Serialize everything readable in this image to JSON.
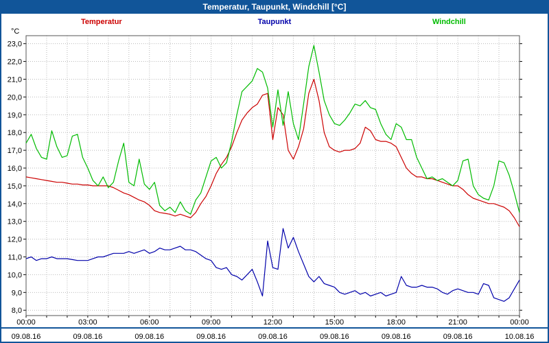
{
  "window": {
    "title": "Temperatur, Taupunkt, Windchill [°C]"
  },
  "colors": {
    "titlebar_bg": "#115599",
    "border": "#115599",
    "separator": "#115599",
    "temperatur": "#cc0000",
    "taupunkt": "#0000aa",
    "windchill": "#00bb00",
    "grid": "#b9b9b9",
    "plot_border": "#555555",
    "axis_text": "#000000"
  },
  "legend": {
    "items": [
      {
        "label": "Temperatur",
        "color_key": "temperatur"
      },
      {
        "label": "Taupunkt",
        "color_key": "taupunkt"
      },
      {
        "label": "Windchill",
        "color_key": "windchill"
      }
    ]
  },
  "chart_data": {
    "type": "line",
    "title": "Temperatur, Taupunkt, Windchill [°C]",
    "y_unit": "°C",
    "ylim": [
      7.7,
      23.45
    ],
    "x_range_hours": [
      0,
      24
    ],
    "sample_step_hours": 0.25,
    "grid": "dotted, every 1 °C horizontal and every 1 h vertical",
    "legend_position": "top",
    "y_ticks": [
      {
        "value": 23,
        "label": "23,0"
      },
      {
        "value": 22,
        "label": "22,0"
      },
      {
        "value": 21,
        "label": "21,0"
      },
      {
        "value": 20,
        "label": "20,0"
      },
      {
        "value": 19,
        "label": "19,0"
      },
      {
        "value": 18,
        "label": "18,0"
      },
      {
        "value": 17,
        "label": "17,0"
      },
      {
        "value": 16,
        "label": "16,0"
      },
      {
        "value": 15,
        "label": "15,0"
      },
      {
        "value": 14,
        "label": "14,0"
      },
      {
        "value": 13,
        "label": "13,0"
      },
      {
        "value": 12,
        "label": "12,0"
      },
      {
        "value": 11,
        "label": "11,0"
      },
      {
        "value": 10,
        "label": "10,0"
      },
      {
        "value": 9,
        "label": "9,0"
      },
      {
        "value": 8,
        "label": "8,0"
      }
    ],
    "x_ticks": [
      {
        "hour": 0,
        "time": "00:00",
        "date": "09.08.16"
      },
      {
        "hour": 3,
        "time": "03:00",
        "date": "09.08.16"
      },
      {
        "hour": 6,
        "time": "06:00",
        "date": "09.08.16"
      },
      {
        "hour": 9,
        "time": "09:00",
        "date": "09.08.16"
      },
      {
        "hour": 12,
        "time": "12:00",
        "date": "09.08.16"
      },
      {
        "hour": 15,
        "time": "15:00",
        "date": "09.08.16"
      },
      {
        "hour": 18,
        "time": "18:00",
        "date": "09.08.16"
      },
      {
        "hour": 21,
        "time": "21:00",
        "date": "09.08.16"
      },
      {
        "hour": 24,
        "time": "00:00",
        "date": "10.08.16"
      }
    ],
    "series": [
      {
        "name": "Temperatur",
        "color_key": "temperatur",
        "values": [
          15.5,
          15.45,
          15.4,
          15.35,
          15.3,
          15.25,
          15.2,
          15.2,
          15.15,
          15.1,
          15.1,
          15.05,
          15.05,
          15.0,
          15.0,
          15.0,
          15.0,
          14.9,
          14.75,
          14.6,
          14.5,
          14.35,
          14.2,
          14.1,
          13.9,
          13.6,
          13.5,
          13.45,
          13.4,
          13.3,
          13.4,
          13.3,
          13.2,
          13.5,
          14.0,
          14.4,
          15.0,
          15.7,
          16.2,
          16.6,
          17.2,
          18.0,
          18.7,
          19.1,
          19.4,
          19.6,
          20.1,
          20.2,
          17.6,
          19.4,
          19.0,
          17.0,
          16.5,
          17.2,
          18.2,
          20.2,
          21.0,
          19.8,
          18.0,
          17.2,
          17.0,
          16.9,
          17.0,
          17.0,
          17.1,
          17.4,
          18.3,
          18.1,
          17.6,
          17.5,
          17.5,
          17.4,
          17.2,
          16.6,
          16.0,
          15.7,
          15.5,
          15.5,
          15.4,
          15.4,
          15.3,
          15.2,
          15.1,
          15.0,
          15.0,
          14.8,
          14.5,
          14.3,
          14.2,
          14.1,
          14.0,
          14.0,
          13.9,
          13.8,
          13.6,
          13.2,
          12.7
        ]
      },
      {
        "name": "Taupunkt",
        "color_key": "taupunkt",
        "values": [
          10.9,
          11.0,
          10.8,
          10.9,
          10.9,
          11.0,
          10.9,
          10.9,
          10.9,
          10.85,
          10.8,
          10.8,
          10.8,
          10.9,
          11.0,
          11.0,
          11.1,
          11.2,
          11.2,
          11.2,
          11.3,
          11.2,
          11.3,
          11.4,
          11.2,
          11.3,
          11.5,
          11.4,
          11.4,
          11.5,
          11.6,
          11.4,
          11.4,
          11.3,
          11.1,
          10.9,
          10.8,
          10.4,
          10.3,
          10.4,
          10.0,
          9.9,
          9.7,
          10.0,
          10.3,
          9.6,
          8.8,
          11.9,
          10.4,
          10.3,
          12.6,
          11.5,
          12.1,
          11.3,
          10.6,
          9.9,
          9.6,
          9.9,
          9.5,
          9.4,
          9.3,
          9.0,
          8.9,
          9.0,
          9.1,
          8.9,
          9.0,
          8.8,
          8.9,
          9.0,
          8.8,
          8.9,
          9.0,
          9.9,
          9.4,
          9.3,
          9.3,
          9.4,
          9.3,
          9.3,
          9.2,
          9.0,
          8.9,
          9.1,
          9.2,
          9.1,
          9.0,
          9.0,
          8.9,
          9.5,
          9.4,
          8.7,
          8.6,
          8.5,
          8.7,
          9.2,
          9.7
        ]
      },
      {
        "name": "Windchill",
        "color_key": "windchill",
        "values": [
          17.4,
          17.9,
          17.1,
          16.6,
          16.5,
          18.1,
          17.2,
          16.6,
          16.7,
          17.8,
          17.9,
          16.6,
          16.0,
          15.3,
          15.0,
          15.5,
          14.9,
          15.2,
          16.4,
          17.4,
          15.2,
          15.0,
          16.5,
          15.1,
          14.8,
          15.2,
          13.9,
          13.6,
          13.8,
          13.5,
          14.1,
          13.6,
          13.4,
          14.2,
          14.6,
          15.5,
          16.4,
          16.6,
          16.0,
          16.3,
          17.5,
          19.0,
          20.3,
          20.6,
          20.9,
          21.6,
          21.4,
          20.5,
          18.3,
          20.4,
          18.4,
          20.3,
          18.5,
          17.6,
          19.6,
          21.7,
          22.9,
          21.4,
          19.8,
          19.0,
          18.5,
          18.4,
          18.7,
          19.1,
          19.6,
          19.5,
          19.8,
          19.4,
          19.3,
          18.5,
          17.9,
          17.6,
          18.5,
          18.3,
          17.6,
          17.6,
          16.6,
          16.0,
          15.4,
          15.5,
          15.3,
          15.4,
          15.2,
          15.0,
          15.3,
          16.4,
          16.5,
          15.0,
          14.5,
          14.3,
          14.2,
          15.0,
          16.4,
          16.3,
          15.6,
          14.6,
          13.5
        ]
      }
    ]
  }
}
